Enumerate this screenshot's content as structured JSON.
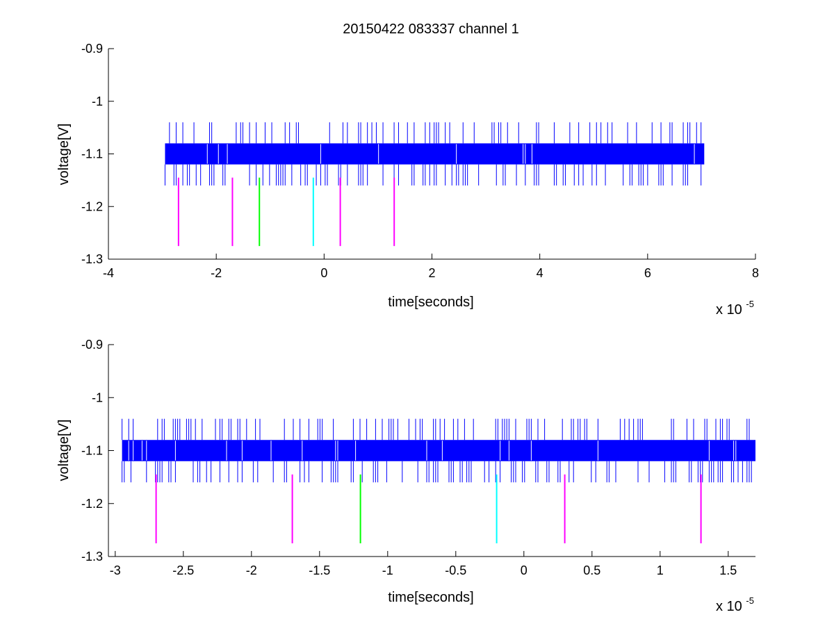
{
  "colors": {
    "signal": "#0000ff",
    "magenta": "#ff00ff",
    "green": "#00ff00",
    "cyan": "#00ffff",
    "axes": "#000000",
    "background": "#ffffff"
  },
  "chart_data": [
    {
      "type": "line",
      "title": "20150422 083337 channel 1",
      "xlabel": "time[seconds]",
      "ylabel": "voltage[V]",
      "x_multiplier": "x 10",
      "x_exponent": "-5",
      "xlim": [
        -4,
        8
      ],
      "ylim": [
        -1.3,
        -0.9
      ],
      "xticks": [
        -4,
        -2,
        0,
        2,
        4,
        6,
        8
      ],
      "xtick_labels": [
        "-4",
        "-2",
        "0",
        "2",
        "4",
        "6",
        "8"
      ],
      "yticks": [
        -1.3,
        -1.2,
        -1.1,
        -1.0,
        -0.9
      ],
      "ytick_labels": [
        "-1.3",
        "-1.2",
        "-1.1",
        "-1",
        "-0.9"
      ],
      "grid": false,
      "signal": {
        "x_range": [
          -2.95,
          7.05
        ],
        "band": [
          -1.12,
          -1.08
        ],
        "spike_high": -1.04,
        "spike_low": -1.16
      },
      "markers": [
        {
          "x": -2.7,
          "y_top": -1.145,
          "y_bottom": -1.275,
          "color": "magenta"
        },
        {
          "x": -1.7,
          "y_top": -1.145,
          "y_bottom": -1.275,
          "color": "magenta"
        },
        {
          "x": -1.2,
          "y_top": -1.145,
          "y_bottom": -1.275,
          "color": "green"
        },
        {
          "x": -0.2,
          "y_top": -1.145,
          "y_bottom": -1.275,
          "color": "cyan"
        },
        {
          "x": 0.3,
          "y_top": -1.145,
          "y_bottom": -1.275,
          "color": "magenta"
        },
        {
          "x": 1.3,
          "y_top": -1.145,
          "y_bottom": -1.275,
          "color": "magenta"
        }
      ]
    },
    {
      "type": "line",
      "title": "",
      "xlabel": "time[seconds]",
      "ylabel": "voltage[V]",
      "x_multiplier": "x 10",
      "x_exponent": "-5",
      "xlim": [
        -3.05,
        1.7
      ],
      "ylim": [
        -1.3,
        -0.9
      ],
      "xticks": [
        -3,
        -2.5,
        -2,
        -1.5,
        -1,
        -0.5,
        0,
        0.5,
        1,
        1.5
      ],
      "xtick_labels": [
        "-3",
        "-2.5",
        "-2",
        "-1.5",
        "-1",
        "-0.5",
        "0",
        "0.5",
        "1",
        "1.5"
      ],
      "yticks": [
        -1.3,
        -1.2,
        -1.1,
        -1.0,
        -0.9
      ],
      "ytick_labels": [
        "-1.3",
        "-1.2",
        "-1.1",
        "-1",
        "-0.9"
      ],
      "grid": false,
      "signal": {
        "x_range": [
          -2.95,
          1.7
        ],
        "band": [
          -1.12,
          -1.08
        ],
        "spike_high": -1.04,
        "spike_low": -1.16
      },
      "markers": [
        {
          "x": -2.7,
          "y_top": -1.145,
          "y_bottom": -1.275,
          "color": "magenta"
        },
        {
          "x": -1.7,
          "y_top": -1.145,
          "y_bottom": -1.275,
          "color": "magenta"
        },
        {
          "x": -1.2,
          "y_top": -1.145,
          "y_bottom": -1.275,
          "color": "green"
        },
        {
          "x": -0.2,
          "y_top": -1.145,
          "y_bottom": -1.275,
          "color": "cyan"
        },
        {
          "x": 0.3,
          "y_top": -1.145,
          "y_bottom": -1.275,
          "color": "magenta"
        },
        {
          "x": 1.3,
          "y_top": -1.145,
          "y_bottom": -1.275,
          "color": "magenta"
        }
      ]
    }
  ]
}
